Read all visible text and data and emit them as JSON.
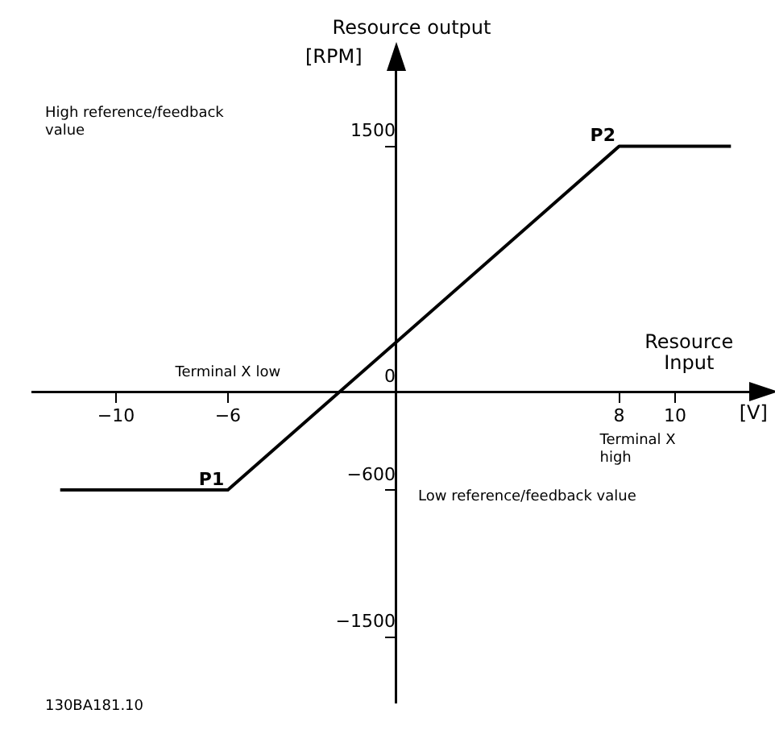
{
  "chart_data": {
    "type": "line",
    "xlabel": "Resource Input",
    "ylabel": "Resource output",
    "x": [
      -12,
      -6,
      8,
      12
    ],
    "series": [
      {
        "color": "#000000",
        "values": [
          -600,
          -600,
          1500,
          1500
        ]
      }
    ],
    "xlim": [
      -13,
      13
    ],
    "ylim": [
      -1900,
      2000
    ],
    "xticks": [
      -10,
      -6,
      8,
      10
    ],
    "yticks": [
      1500,
      0,
      -600,
      -1500
    ],
    "grid": false,
    "legend": false,
    "marker": "none",
    "line_style": "solid",
    "annotations": [
      {
        "text": "P1",
        "x": -6,
        "y": -600
      },
      {
        "text": "P2",
        "x": 8,
        "y": 1500
      },
      "Terminal X low",
      "Terminal X high",
      "Low reference/feedback value",
      "[RPM]",
      "High reference/feedback value",
      "[V]",
      "130BA181.10"
    ]
  }
}
